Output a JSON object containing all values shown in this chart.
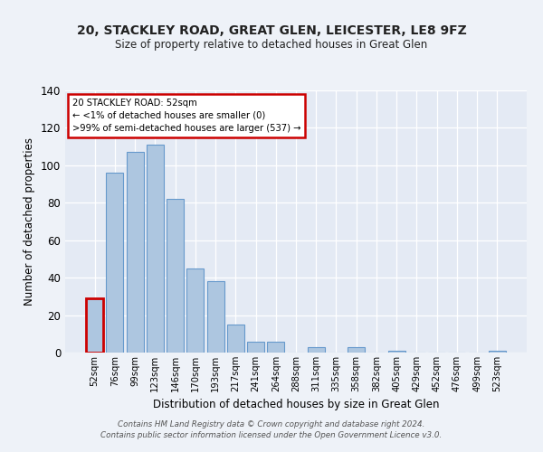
{
  "title": "20, STACKLEY ROAD, GREAT GLEN, LEICESTER, LE8 9FZ",
  "subtitle": "Size of property relative to detached houses in Great Glen",
  "xlabel": "Distribution of detached houses by size in Great Glen",
  "ylabel": "Number of detached properties",
  "categories": [
    "52sqm",
    "76sqm",
    "99sqm",
    "123sqm",
    "146sqm",
    "170sqm",
    "193sqm",
    "217sqm",
    "241sqm",
    "264sqm",
    "288sqm",
    "311sqm",
    "335sqm",
    "358sqm",
    "382sqm",
    "405sqm",
    "429sqm",
    "452sqm",
    "476sqm",
    "499sqm",
    "523sqm"
  ],
  "values": [
    29,
    96,
    107,
    111,
    82,
    45,
    38,
    15,
    6,
    6,
    0,
    3,
    0,
    3,
    0,
    1,
    0,
    0,
    0,
    0,
    1
  ],
  "bar_color": "#adc6e0",
  "bar_edge_color": "#6699cc",
  "highlight_bar_index": 0,
  "highlight_color": "#cc0000",
  "annotation_title": "20 STACKLEY ROAD: 52sqm",
  "annotation_line1": "← <1% of detached houses are smaller (0)",
  "annotation_line2": ">99% of semi-detached houses are larger (537) →",
  "annotation_box_color": "#cc0000",
  "ylim": [
    0,
    140
  ],
  "yticks": [
    0,
    20,
    40,
    60,
    80,
    100,
    120,
    140
  ],
  "footer1": "Contains HM Land Registry data © Crown copyright and database right 2024.",
  "footer2": "Contains public sector information licensed under the Open Government Licence v3.0.",
  "bg_color": "#eef2f8",
  "plot_bg_color": "#e4eaf4"
}
